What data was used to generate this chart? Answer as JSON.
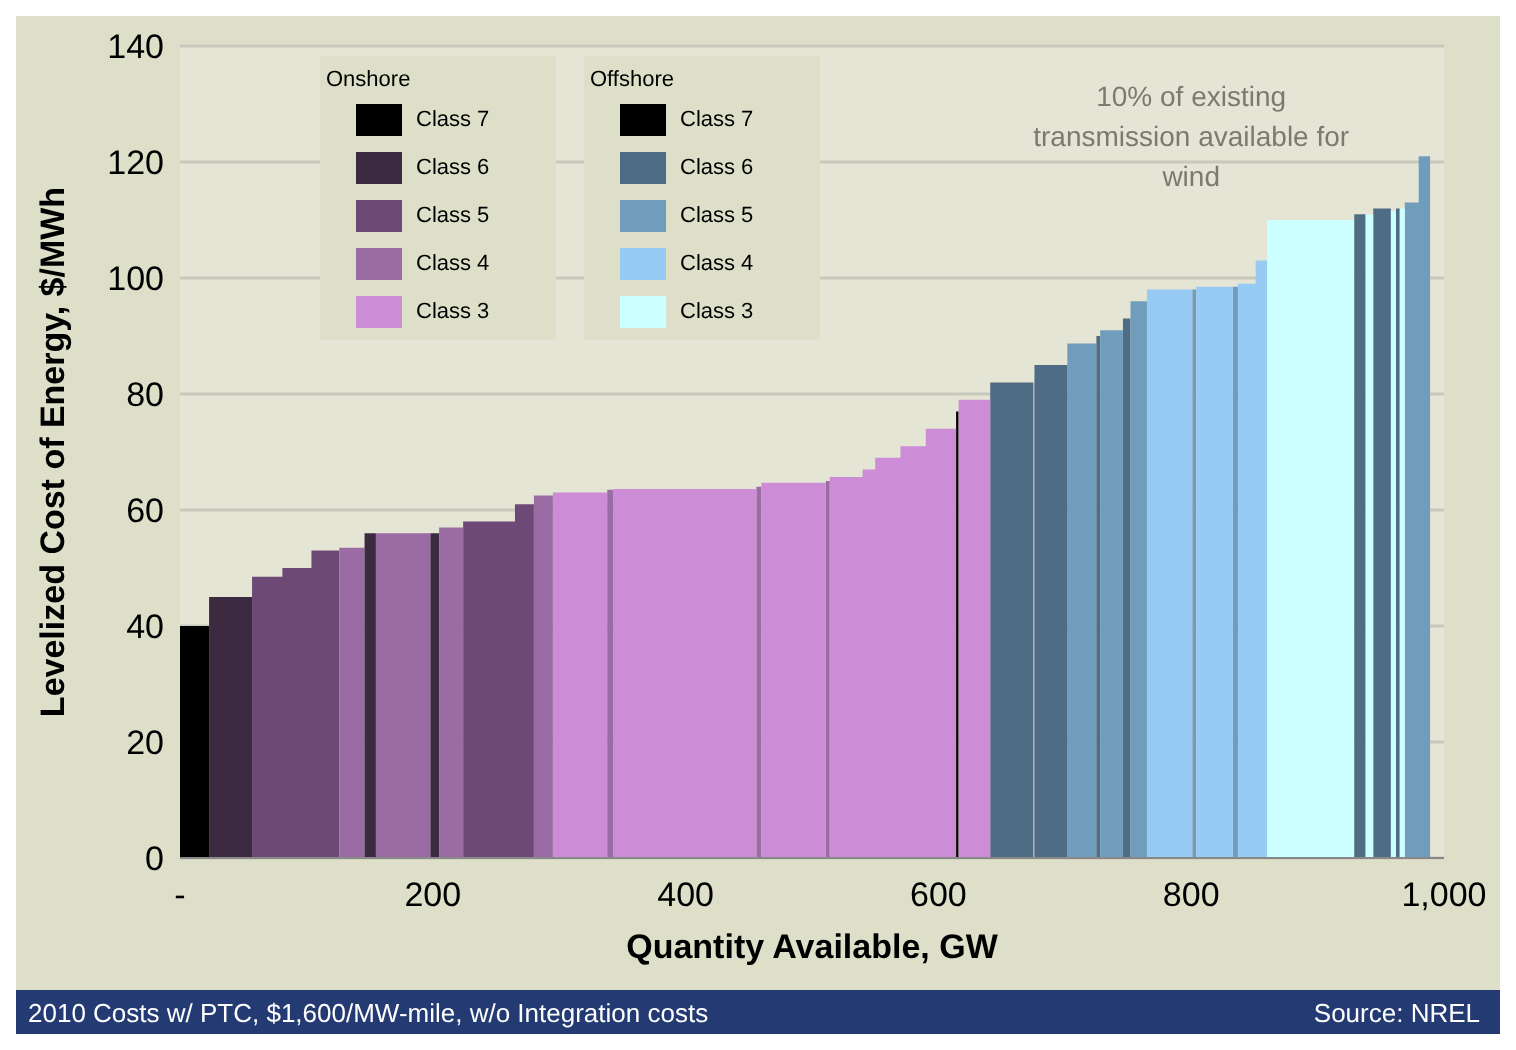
{
  "chart_data": {
    "type": "area",
    "xlabel": "Quantity Available, GW",
    "ylabel": "Levelized Cost  of Energy, $/MWh",
    "xlim": [
      0,
      1000
    ],
    "xticks": [
      {
        "value": 0,
        "label": "-"
      },
      200,
      400,
      600,
      800,
      {
        "value": 1000,
        "label": "1,000"
      }
    ],
    "ylim": [
      0,
      140
    ],
    "yticks": [
      0,
      20,
      40,
      60,
      80,
      100,
      120,
      140
    ],
    "grid": "y",
    "legend": "top left",
    "annotations": [
      "Onshore",
      "Offshore",
      "10% of existing transmission available for wind",
      "2010 Costs w/ PTC, $1,600/MW-mile, w/o Integration costs",
      "Source: NREL"
    ],
    "series": [
      {
        "name": "Class 7",
        "color": "#000000",
        "x": [
          0,
          23
        ],
        "values": [
          40,
          40
        ]
      },
      {
        "name": "Class 6",
        "color": "#3b2a40",
        "x": [
          23,
          57
        ],
        "values": [
          45,
          45
        ]
      },
      {
        "name": "Class 5",
        "color": "#6c4a75",
        "x": [
          57,
          81,
          81,
          104,
          104,
          126
        ],
        "values": [
          48.5,
          48.5,
          50,
          50,
          53,
          53
        ]
      },
      {
        "name": "Class 4",
        "color": "#9b6ba3",
        "x": [
          126,
          146
        ],
        "values": [
          53.5,
          53.5
        ]
      },
      {
        "name": "Class 3",
        "color": "#cc8cd6",
        "x": [
          295,
          338
        ],
        "values": [
          63,
          63
        ]
      },
      {
        "name": "Class 7",
        "color": "#000000",
        "x": [
          614,
          616
        ],
        "values": [
          77,
          77
        ]
      },
      {
        "name": "Class 6",
        "color": "#4e6d84",
        "x": [
          641,
          675
        ],
        "values": [
          82,
          82
        ]
      },
      {
        "name": "Class 5",
        "color": "#719dbd",
        "x": [
          702,
          725
        ],
        "values": [
          88.7,
          88.7
        ]
      },
      {
        "name": "Class 4",
        "color": "#97cbf3",
        "x": [
          765,
          801
        ],
        "values": [
          98,
          98
        ]
      },
      {
        "name": "Class 3",
        "color": "#ccffff",
        "x": [
          860,
          929
        ],
        "values": [
          110,
          110
        ]
      },
      {
        "color": "#3b2a40",
        "x": [
          146,
          155
        ],
        "values": [
          56,
          56
        ]
      },
      {
        "color": "#3b2a40",
        "x": [
          198,
          205
        ],
        "values": [
          56,
          56
        ]
      },
      {
        "color": "#6c4a75",
        "x": [
          224,
          265,
          265,
          280
        ],
        "values": [
          58,
          58,
          61,
          61
        ]
      },
      {
        "color": "#9b6ba3",
        "x": [
          155,
          198
        ],
        "values": [
          56,
          56
        ]
      },
      {
        "color": "#9b6ba3",
        "x": [
          205,
          224
        ],
        "values": [
          57,
          57
        ]
      },
      {
        "color": "#9b6ba3",
        "x": [
          280,
          295
        ],
        "values": [
          62.5,
          62.5
        ]
      },
      {
        "color": "#9b6ba3",
        "x": [
          338,
          343
        ],
        "values": [
          63.5,
          63.5
        ]
      },
      {
        "color": "#9b6ba3",
        "x": [
          456,
          460
        ],
        "values": [
          64,
          64
        ]
      },
      {
        "color": "#9b6ba3",
        "x": [
          511,
          514
        ],
        "values": [
          65,
          65
        ]
      },
      {
        "color": "#cc8cd6",
        "x": [
          343,
          456
        ],
        "values": [
          63.6,
          63.6
        ]
      },
      {
        "color": "#cc8cd6",
        "x": [
          460,
          511
        ],
        "values": [
          64.7,
          64.7
        ]
      },
      {
        "color": "#cc8cd6",
        "x": [
          514,
          540,
          540,
          550,
          550,
          570,
          570,
          590,
          590,
          614
        ],
        "values": [
          65.7,
          65.7,
          67,
          67,
          69,
          69,
          71,
          71,
          74,
          74
        ]
      },
      {
        "color": "#cc8cd6",
        "x": [
          616,
          641
        ],
        "values": [
          79,
          79
        ]
      },
      {
        "color": "#cc8cd6",
        "x": [
          675,
          676
        ],
        "values": [
          82,
          82
        ]
      },
      {
        "color": "#4e6d84",
        "x": [
          676,
          702
        ],
        "values": [
          85,
          85
        ]
      },
      {
        "color": "#4e6d84",
        "x": [
          725,
          728
        ],
        "values": [
          90,
          90
        ]
      },
      {
        "color": "#4e6d84",
        "x": [
          746,
          752
        ],
        "values": [
          93,
          93
        ]
      },
      {
        "color": "#4e6d84",
        "x": [
          929,
          938
        ],
        "values": [
          111,
          111
        ]
      },
      {
        "color": "#4e6d84",
        "x": [
          944,
          958
        ],
        "values": [
          112,
          112
        ]
      },
      {
        "color": "#4e6d84",
        "x": [
          962,
          965
        ],
        "values": [
          112,
          112
        ]
      },
      {
        "color": "#719dbd",
        "x": [
          728,
          746
        ],
        "values": [
          91,
          91
        ]
      },
      {
        "color": "#719dbd",
        "x": [
          752,
          765
        ],
        "values": [
          96,
          96
        ]
      },
      {
        "color": "#719dbd",
        "x": [
          801,
          804
        ],
        "values": [
          98,
          98
        ]
      },
      {
        "color": "#719dbd",
        "x": [
          833,
          837
        ],
        "values": [
          98.5,
          98.5
        ]
      },
      {
        "color": "#719dbd",
        "x": [
          969,
          980,
          980,
          989
        ],
        "values": [
          113,
          113,
          121,
          121
        ]
      },
      {
        "color": "#97cbf3",
        "x": [
          804,
          833
        ],
        "values": [
          98.5,
          98.5
        ]
      },
      {
        "color": "#97cbf3",
        "x": [
          837,
          851,
          851,
          860
        ],
        "values": [
          99,
          99,
          103,
          103
        ]
      },
      {
        "color": "#ccffff",
        "x": [
          938,
          944
        ],
        "values": [
          111,
          111
        ]
      },
      {
        "color": "#ccffff",
        "x": [
          958,
          962
        ],
        "values": [
          111.5,
          111.5
        ]
      },
      {
        "color": "#ccffff",
        "x": [
          965,
          969
        ],
        "values": [
          112,
          112
        ]
      }
    ]
  }
}
